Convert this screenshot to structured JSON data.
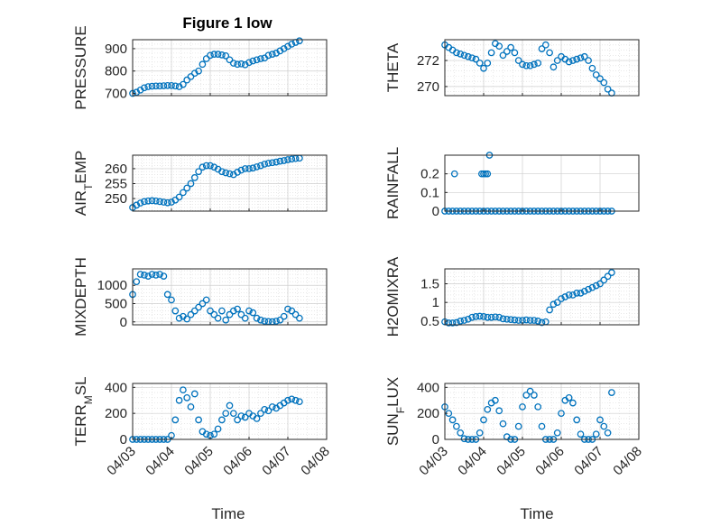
{
  "figure": {
    "title": "Figure 1 low",
    "marker_color": "#0072BD",
    "axis_color": "#262626",
    "grid_color": "#d9d9d9"
  },
  "chart_data": [
    {
      "type": "scatter",
      "id": "pressure",
      "ylabel": "PRESSURE",
      "ylabel_sub": "",
      "ylabel_rest": "",
      "xlim": [
        0,
        5
      ],
      "ylim": [
        690,
        940
      ],
      "yticks": [
        700,
        800,
        900
      ],
      "ytick_labels": [
        "700",
        "800",
        "900"
      ],
      "show_xticklabels": false,
      "minor_grid": true,
      "x": [
        0.0,
        0.1,
        0.2,
        0.3,
        0.4,
        0.5,
        0.6,
        0.7,
        0.8,
        0.9,
        1.0,
        1.1,
        1.2,
        1.3,
        1.4,
        1.5,
        1.6,
        1.7,
        1.8,
        1.9,
        2.0,
        2.1,
        2.2,
        2.3,
        2.4,
        2.5,
        2.6,
        2.7,
        2.8,
        2.9,
        3.0,
        3.1,
        3.2,
        3.3,
        3.4,
        3.5,
        3.6,
        3.7,
        3.8,
        3.9,
        4.0,
        4.1,
        4.2,
        4.3
      ],
      "y": [
        700,
        705,
        715,
        725,
        730,
        732,
        733,
        733,
        734,
        735,
        735,
        733,
        730,
        740,
        760,
        775,
        790,
        800,
        830,
        855,
        870,
        875,
        875,
        872,
        868,
        850,
        835,
        830,
        832,
        828,
        838,
        845,
        850,
        855,
        858,
        870,
        875,
        880,
        890,
        900,
        910,
        920,
        928,
        935
      ]
    },
    {
      "type": "scatter",
      "id": "theta",
      "ylabel": "THETA",
      "ylabel_sub": "",
      "ylabel_rest": "",
      "xlim": [
        0,
        5
      ],
      "ylim": [
        269.3,
        273.6
      ],
      "yticks": [
        270,
        272
      ],
      "ytick_labels": [
        "270",
        "272"
      ],
      "show_xticklabels": false,
      "minor_grid": true,
      "x": [
        0.0,
        0.1,
        0.2,
        0.3,
        0.4,
        0.5,
        0.6,
        0.7,
        0.8,
        0.9,
        1.0,
        1.1,
        1.2,
        1.3,
        1.4,
        1.5,
        1.6,
        1.7,
        1.8,
        1.9,
        2.0,
        2.1,
        2.2,
        2.3,
        2.4,
        2.5,
        2.6,
        2.7,
        2.8,
        2.9,
        3.0,
        3.1,
        3.2,
        3.3,
        3.4,
        3.5,
        3.6,
        3.7,
        3.8,
        3.9,
        4.0,
        4.1,
        4.2,
        4.3
      ],
      "y": [
        273.2,
        273.0,
        272.8,
        272.6,
        272.5,
        272.4,
        272.3,
        272.2,
        272.1,
        271.8,
        271.4,
        271.8,
        272.6,
        273.3,
        273.1,
        272.4,
        272.7,
        273.0,
        272.6,
        272.0,
        271.7,
        271.6,
        271.6,
        271.7,
        271.8,
        272.9,
        273.2,
        272.6,
        271.5,
        272.0,
        272.3,
        272.1,
        271.9,
        272.0,
        272.1,
        272.2,
        272.3,
        272.0,
        271.4,
        270.9,
        270.6,
        270.3,
        269.8,
        269.5
      ]
    },
    {
      "type": "scatter",
      "id": "air_temp",
      "ylabel": "AIR",
      "ylabel_sub": "T",
      "ylabel_rest": "EMP",
      "xlim": [
        0,
        5
      ],
      "ylim": [
        245.8,
        264.5
      ],
      "yticks": [
        250,
        255,
        260
      ],
      "ytick_labels": [
        "250",
        "255",
        "260"
      ],
      "show_xticklabels": false,
      "minor_grid": true,
      "x": [
        0.0,
        0.1,
        0.2,
        0.3,
        0.4,
        0.5,
        0.6,
        0.7,
        0.8,
        0.9,
        1.0,
        1.1,
        1.2,
        1.3,
        1.4,
        1.5,
        1.6,
        1.7,
        1.8,
        1.9,
        2.0,
        2.1,
        2.2,
        2.3,
        2.4,
        2.5,
        2.6,
        2.7,
        2.8,
        2.9,
        3.0,
        3.1,
        3.2,
        3.3,
        3.4,
        3.5,
        3.6,
        3.7,
        3.8,
        3.9,
        4.0,
        4.1,
        4.2,
        4.3
      ],
      "y": [
        247.0,
        247.8,
        248.5,
        249.0,
        249.2,
        249.3,
        249.2,
        249.0,
        248.8,
        248.6,
        248.8,
        249.5,
        250.5,
        252.0,
        253.5,
        255.0,
        257.0,
        259.0,
        260.5,
        261.0,
        261.0,
        260.5,
        259.8,
        259.0,
        258.6,
        258.3,
        258.0,
        258.8,
        259.5,
        260.0,
        260.0,
        260.2,
        260.6,
        261.0,
        261.5,
        261.8,
        262.0,
        262.2,
        262.5,
        262.7,
        263.0,
        263.2,
        263.4,
        263.5
      ]
    },
    {
      "type": "scatter",
      "id": "rainfall",
      "ylabel": "RAINFALL",
      "ylabel_sub": "",
      "ylabel_rest": "",
      "xlim": [
        0,
        5
      ],
      "ylim": [
        0,
        0.3
      ],
      "yticks": [
        0,
        0.1,
        0.2
      ],
      "ytick_labels": [
        "0",
        "0.1",
        "0.2"
      ],
      "show_xticklabels": false,
      "minor_grid": false,
      "x": [
        0.0,
        0.1,
        0.2,
        0.3,
        0.4,
        0.5,
        0.6,
        0.7,
        0.8,
        0.9,
        1.0,
        1.1,
        1.2,
        1.3,
        1.4,
        1.5,
        1.6,
        1.7,
        1.8,
        1.9,
        2.0,
        2.1,
        2.2,
        2.3,
        2.4,
        2.5,
        2.6,
        2.7,
        2.8,
        2.9,
        3.0,
        3.1,
        3.2,
        3.3,
        3.4,
        3.5,
        3.6,
        3.7,
        3.8,
        3.9,
        4.0,
        4.1,
        4.2,
        4.3,
        0.25,
        0.95,
        1.0,
        1.05,
        1.1,
        1.15
      ],
      "y": [
        0,
        0,
        0,
        0,
        0,
        0,
        0,
        0,
        0,
        0,
        0,
        0,
        0,
        0,
        0,
        0,
        0,
        0,
        0,
        0,
        0,
        0,
        0,
        0,
        0,
        0,
        0,
        0,
        0,
        0,
        0,
        0,
        0,
        0,
        0,
        0,
        0,
        0,
        0,
        0,
        0,
        0,
        0,
        0,
        0.2,
        0.2,
        0.2,
        0.2,
        0.2,
        0.3
      ]
    },
    {
      "type": "scatter",
      "id": "mixdepth",
      "ylabel": "MIXDEPTH",
      "ylabel_sub": "",
      "ylabel_rest": "",
      "xlim": [
        0,
        5
      ],
      "ylim": [
        -80,
        1450
      ],
      "yticks": [
        0,
        500,
        1000
      ],
      "ytick_labels": [
        "0",
        "500",
        "1000"
      ],
      "show_xticklabels": false,
      "minor_grid": true,
      "x": [
        0.0,
        0.1,
        0.2,
        0.3,
        0.4,
        0.5,
        0.6,
        0.7,
        0.8,
        0.9,
        1.0,
        1.1,
        1.2,
        1.3,
        1.4,
        1.5,
        1.6,
        1.7,
        1.8,
        1.9,
        2.0,
        2.1,
        2.2,
        2.3,
        2.4,
        2.5,
        2.6,
        2.7,
        2.8,
        2.9,
        3.0,
        3.1,
        3.2,
        3.3,
        3.4,
        3.5,
        3.6,
        3.7,
        3.8,
        3.9,
        4.0,
        4.1,
        4.2,
        4.3
      ],
      "y": [
        750,
        1100,
        1300,
        1280,
        1250,
        1300,
        1280,
        1300,
        1250,
        750,
        600,
        300,
        100,
        150,
        80,
        200,
        300,
        400,
        500,
        600,
        300,
        200,
        100,
        300,
        50,
        200,
        300,
        350,
        200,
        100,
        300,
        250,
        100,
        50,
        20,
        10,
        5,
        20,
        50,
        150,
        350,
        300,
        200,
        100
      ]
    },
    {
      "type": "scatter",
      "id": "h2omixra",
      "ylabel": "H2OMIXRA",
      "ylabel_sub": "",
      "ylabel_rest": "",
      "xlim": [
        0,
        5
      ],
      "ylim": [
        0.4,
        1.9
      ],
      "yticks": [
        0.5,
        1,
        1.5
      ],
      "ytick_labels": [
        "0.5",
        "1",
        "1.5"
      ],
      "show_xticklabels": false,
      "minor_grid": true,
      "x": [
        0.0,
        0.1,
        0.2,
        0.3,
        0.4,
        0.5,
        0.6,
        0.7,
        0.8,
        0.9,
        1.0,
        1.1,
        1.2,
        1.3,
        1.4,
        1.5,
        1.6,
        1.7,
        1.8,
        1.9,
        2.0,
        2.1,
        2.2,
        2.3,
        2.4,
        2.5,
        2.6,
        2.7,
        2.8,
        2.9,
        3.0,
        3.1,
        3.2,
        3.3,
        3.4,
        3.5,
        3.6,
        3.7,
        3.8,
        3.9,
        4.0,
        4.1,
        4.2,
        4.3
      ],
      "y": [
        0.48,
        0.45,
        0.45,
        0.46,
        0.5,
        0.52,
        0.55,
        0.6,
        0.62,
        0.63,
        0.62,
        0.6,
        0.6,
        0.61,
        0.6,
        0.56,
        0.55,
        0.54,
        0.53,
        0.52,
        0.52,
        0.53,
        0.52,
        0.52,
        0.5,
        0.46,
        0.48,
        0.8,
        0.95,
        1.0,
        1.1,
        1.15,
        1.2,
        1.2,
        1.25,
        1.25,
        1.3,
        1.35,
        1.4,
        1.45,
        1.5,
        1.6,
        1.7,
        1.8
      ]
    },
    {
      "type": "scatter",
      "id": "terr_msl",
      "ylabel": "TERR",
      "ylabel_sub": "M",
      "ylabel_rest": "SL",
      "xlim": [
        0,
        5
      ],
      "ylim": [
        0,
        430
      ],
      "yticks": [
        0,
        200,
        400
      ],
      "ytick_labels": [
        "0",
        "200",
        "400"
      ],
      "show_xticklabels": true,
      "minor_grid": true,
      "x": [
        0.0,
        0.1,
        0.2,
        0.3,
        0.4,
        0.5,
        0.6,
        0.7,
        0.8,
        0.9,
        1.0,
        1.1,
        1.2,
        1.3,
        1.4,
        1.5,
        1.6,
        1.7,
        1.8,
        1.9,
        2.0,
        2.1,
        2.2,
        2.3,
        2.4,
        2.5,
        2.6,
        2.7,
        2.8,
        2.9,
        3.0,
        3.1,
        3.2,
        3.3,
        3.4,
        3.5,
        3.6,
        3.7,
        3.8,
        3.9,
        4.0,
        4.1,
        4.2,
        4.3
      ],
      "y": [
        0,
        0,
        0,
        0,
        0,
        0,
        0,
        0,
        0,
        0,
        30,
        150,
        300,
        380,
        320,
        250,
        350,
        150,
        60,
        40,
        30,
        40,
        80,
        150,
        200,
        260,
        200,
        150,
        180,
        170,
        200,
        180,
        160,
        200,
        230,
        220,
        250,
        240,
        260,
        280,
        300,
        310,
        300,
        290
      ]
    },
    {
      "type": "scatter",
      "id": "sun_flux",
      "ylabel": "SUN",
      "ylabel_sub": "F",
      "ylabel_rest": "LUX",
      "xlim": [
        0,
        5
      ],
      "ylim": [
        0,
        430
      ],
      "yticks": [
        0,
        200,
        400
      ],
      "ytick_labels": [
        "0",
        "200",
        "400"
      ],
      "show_xticklabels": true,
      "minor_grid": true,
      "x": [
        0.0,
        0.1,
        0.2,
        0.3,
        0.4,
        0.5,
        0.6,
        0.7,
        0.8,
        0.9,
        1.0,
        1.1,
        1.2,
        1.3,
        1.4,
        1.5,
        1.6,
        1.7,
        1.8,
        1.9,
        2.0,
        2.1,
        2.2,
        2.3,
        2.4,
        2.5,
        2.6,
        2.7,
        2.8,
        2.9,
        3.0,
        3.1,
        3.2,
        3.3,
        3.4,
        3.5,
        3.6,
        3.7,
        3.8,
        3.9,
        4.0,
        4.1,
        4.2,
        4.3
      ],
      "y": [
        250,
        200,
        150,
        100,
        50,
        5,
        0,
        0,
        0,
        50,
        150,
        230,
        280,
        300,
        220,
        120,
        20,
        0,
        0,
        100,
        250,
        340,
        370,
        340,
        250,
        100,
        0,
        0,
        0,
        50,
        200,
        300,
        320,
        280,
        150,
        40,
        0,
        0,
        0,
        40,
        150,
        100,
        50,
        360
      ]
    }
  ],
  "xaxis": {
    "tick_values": [
      0,
      1,
      2,
      3,
      4,
      5
    ],
    "tick_labels": [
      "04/03",
      "04/04",
      "04/05",
      "04/06",
      "04/07",
      "04/08"
    ],
    "label": "Time"
  }
}
